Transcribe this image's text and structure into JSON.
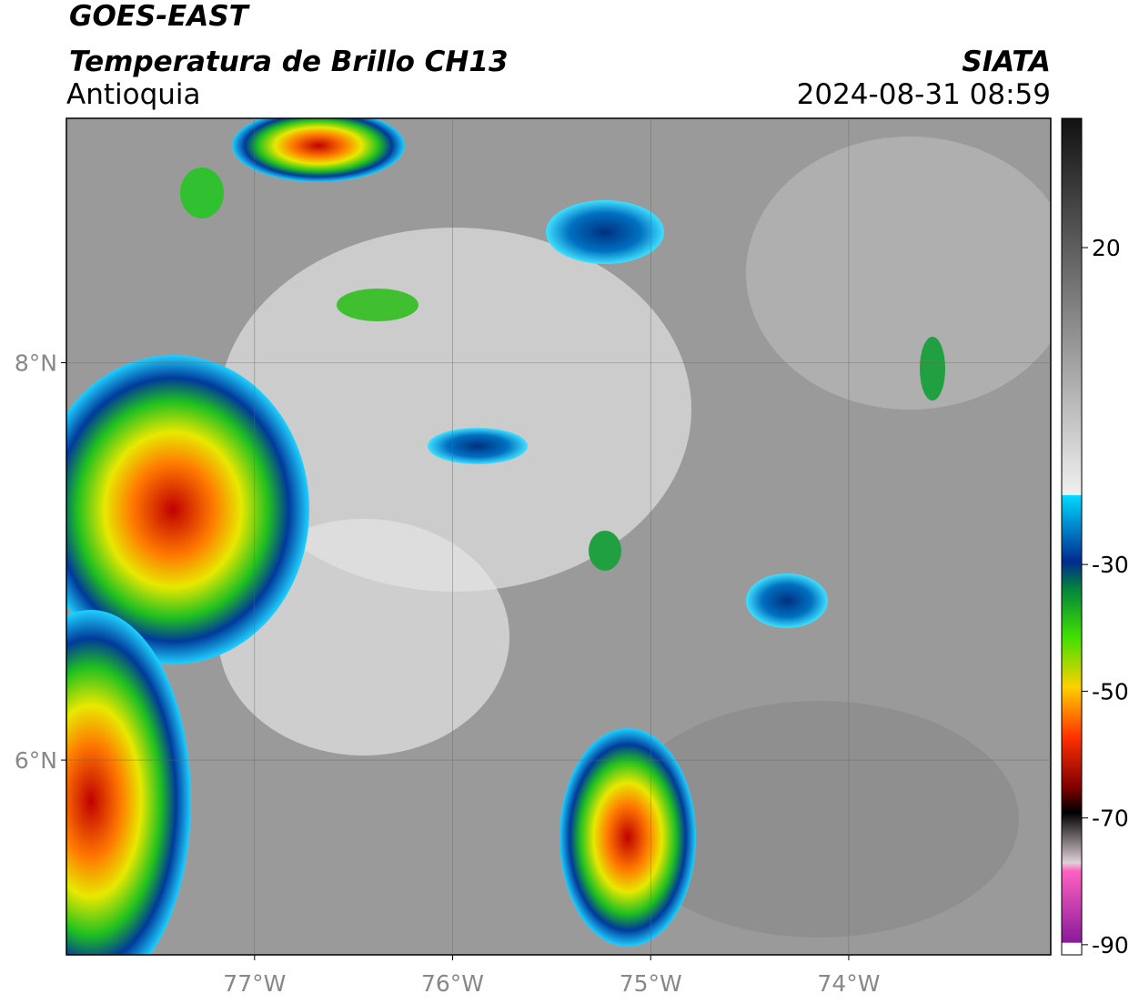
{
  "header": {
    "title": "GOES-EAST",
    "subtitle": "Temperatura de Brillo CH13",
    "region": "Antioquia",
    "source": "SIATA",
    "datetime": "2024-08-31 08:59"
  },
  "map": {
    "xlim": [
      -77.95,
      -72.98
    ],
    "ylim": [
      5.02,
      9.23
    ],
    "xticks": [
      {
        "value": -77,
        "label": "77°W"
      },
      {
        "value": -76,
        "label": "76°W"
      },
      {
        "value": -75,
        "label": "75°W"
      },
      {
        "value": -74,
        "label": "74°W"
      }
    ],
    "yticks": [
      {
        "value": 8,
        "label": "8°N"
      },
      {
        "value": 6,
        "label": "6°N"
      }
    ]
  },
  "colorbar": {
    "lim": [
      -91.6,
      40.4
    ],
    "ticks": [
      20,
      -30,
      -50,
      -70,
      -90
    ]
  }
}
